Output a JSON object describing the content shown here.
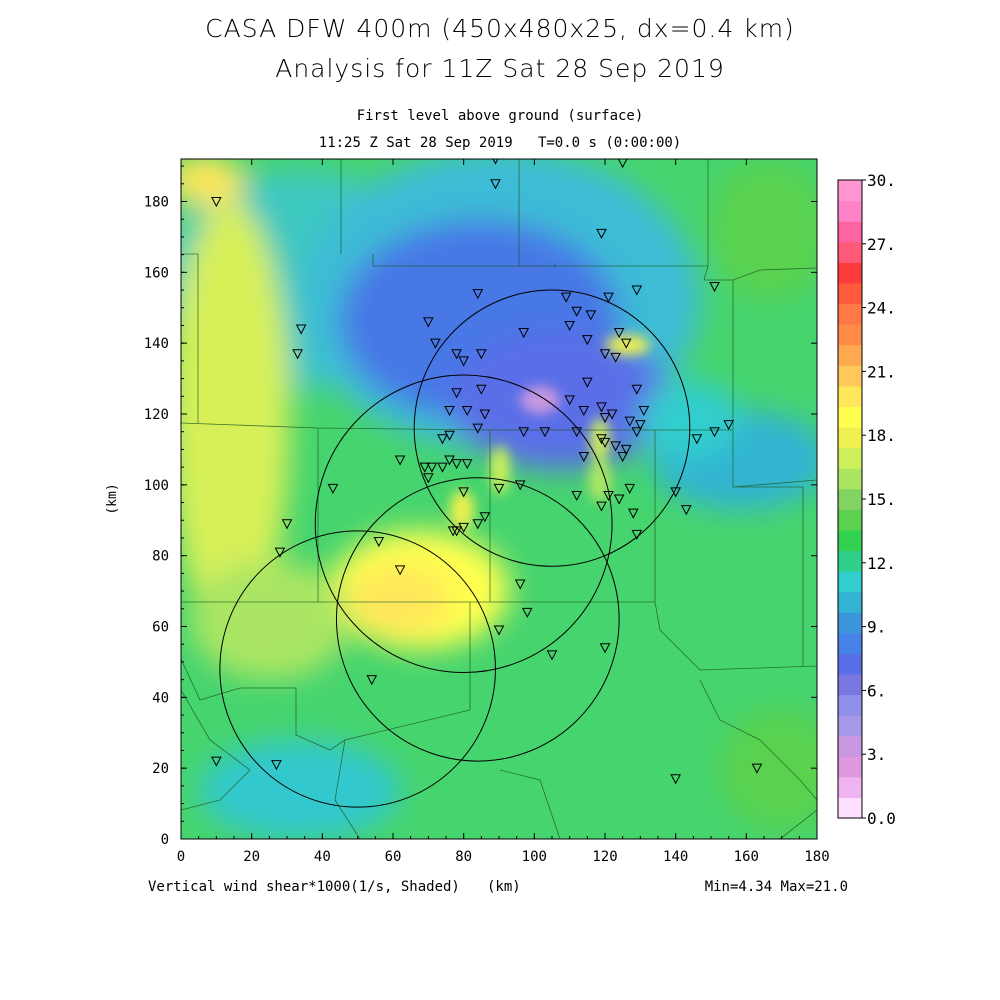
{
  "title_line1": "CASA DFW 400m (450x480x25, dx=0.4 km)",
  "title_line2": "Analysis for 11Z Sat 28 Sep 2019",
  "subtitle_line1": "First level above ground (surface)",
  "subtitle_time": "11:25 Z Sat 28 Sep 2019",
  "subtitle_t": "T=0.0 s (0:00:00)",
  "field_caption": "Vertical wind shear*1000(1/s, Shaded)",
  "x_unit_caption": "(km)",
  "y_axis_label": "(km)",
  "stats": "Min=4.34 Max=21.0",
  "map_data": {
    "x_range_km": [
      0,
      180
    ],
    "y_range_km": [
      0,
      192
    ],
    "x_ticks": [
      "0",
      "20",
      "40",
      "60",
      "80",
      "100",
      "120",
      "140",
      "160",
      "180"
    ],
    "y_ticks": [
      "0",
      "20",
      "40",
      "60",
      "80",
      "100",
      "120",
      "140",
      "160",
      "180"
    ],
    "colorbar_labels": [
      "0.0",
      "3.",
      "6.",
      "9.",
      "12.",
      "15.",
      "18.",
      "21.",
      "24.",
      "27.",
      "30."
    ],
    "colorbar_colors": [
      "#ffe0ff",
      "#f0b4f0",
      "#e098e0",
      "#c898e0",
      "#a898e8",
      "#9090e8",
      "#7878e0",
      "#5a6ee8",
      "#4682e8",
      "#3c96dc",
      "#32b4d2",
      "#32cdcd",
      "#30d08c",
      "#32d250",
      "#5ad250",
      "#82d264",
      "#aae664",
      "#cdf05a",
      "#f0f050",
      "#ffff50",
      "#ffe65a",
      "#ffc85a",
      "#ffaa50",
      "#ff8c46",
      "#ff7846",
      "#ff5a3c",
      "#ff3c3c",
      "#ff5a78",
      "#ff64a0",
      "#ff82c8",
      "#ff96d2"
    ],
    "radar_rings_km": [
      {
        "cx": 105,
        "cy": 116,
        "r": 39
      },
      {
        "cx": 80,
        "cy": 89,
        "r": 42
      },
      {
        "cx": 84,
        "cy": 62,
        "r": 40
      },
      {
        "cx": 50,
        "cy": 48,
        "r": 39
      }
    ],
    "stations_km": [
      [
        10,
        180
      ],
      [
        89,
        192
      ],
      [
        89,
        185
      ],
      [
        125,
        191
      ],
      [
        119,
        171
      ],
      [
        151,
        156
      ],
      [
        34,
        144
      ],
      [
        33,
        137
      ],
      [
        70,
        146
      ],
      [
        84,
        154
      ],
      [
        109,
        153
      ],
      [
        121,
        153
      ],
      [
        129,
        155
      ],
      [
        112,
        149
      ],
      [
        116,
        148
      ],
      [
        110,
        145
      ],
      [
        124,
        143
      ],
      [
        97,
        143
      ],
      [
        115,
        141
      ],
      [
        72,
        140
      ],
      [
        78,
        137
      ],
      [
        80,
        135
      ],
      [
        85,
        137
      ],
      [
        120,
        137
      ],
      [
        123,
        136
      ],
      [
        126,
        140
      ],
      [
        85,
        127
      ],
      [
        78,
        126
      ],
      [
        115,
        129
      ],
      [
        129,
        127
      ],
      [
        110,
        124
      ],
      [
        114,
        121
      ],
      [
        76,
        121
      ],
      [
        81,
        121
      ],
      [
        86,
        120
      ],
      [
        119,
        122
      ],
      [
        120,
        119
      ],
      [
        122,
        120
      ],
      [
        127,
        118
      ],
      [
        131,
        121
      ],
      [
        130,
        117
      ],
      [
        129,
        115
      ],
      [
        120,
        112
      ],
      [
        123,
        111
      ],
      [
        126,
        110
      ],
      [
        119,
        113
      ],
      [
        112,
        115
      ],
      [
        114,
        108
      ],
      [
        76,
        114
      ],
      [
        74,
        113
      ],
      [
        84,
        116
      ],
      [
        97,
        115
      ],
      [
        155,
        117
      ],
      [
        151,
        115
      ],
      [
        146,
        113
      ],
      [
        125,
        108
      ],
      [
        103,
        115
      ],
      [
        74,
        105
      ],
      [
        71,
        105
      ],
      [
        69,
        105
      ],
      [
        70,
        102
      ],
      [
        62,
        107
      ],
      [
        76,
        107
      ],
      [
        78,
        106
      ],
      [
        81,
        106
      ],
      [
        43,
        99
      ],
      [
        80,
        98
      ],
      [
        90,
        99
      ],
      [
        96,
        100
      ],
      [
        112,
        97
      ],
      [
        121,
        97
      ],
      [
        124,
        96
      ],
      [
        127,
        99
      ],
      [
        119,
        94
      ],
      [
        140,
        98
      ],
      [
        143,
        93
      ],
      [
        128,
        92
      ],
      [
        30,
        89
      ],
      [
        80,
        88
      ],
      [
        78,
        87
      ],
      [
        77,
        87
      ],
      [
        84,
        89
      ],
      [
        86,
        91
      ],
      [
        56,
        84
      ],
      [
        28,
        81
      ],
      [
        129,
        86
      ],
      [
        62,
        76
      ],
      [
        96,
        72
      ],
      [
        98,
        64
      ],
      [
        90,
        59
      ],
      [
        105,
        52
      ],
      [
        120,
        54
      ],
      [
        54,
        45
      ],
      [
        10,
        22
      ],
      [
        27,
        21
      ],
      [
        140,
        17
      ],
      [
        163,
        20
      ]
    ]
  }
}
